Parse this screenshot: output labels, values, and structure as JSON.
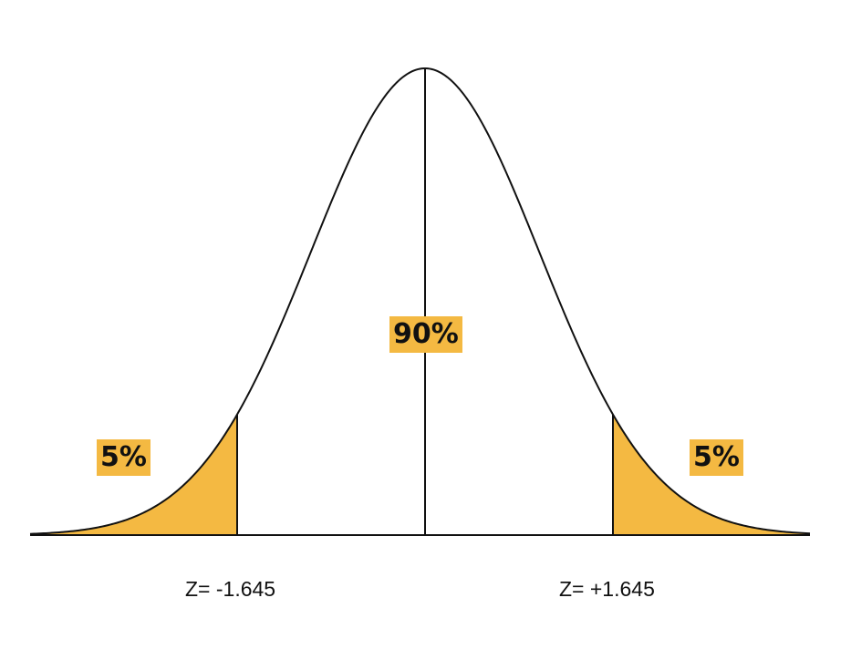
{
  "labels": {
    "left_tail": "5%",
    "center": "90%",
    "right_tail": "5%",
    "z_left": "Z= -1.645",
    "z_right": "Z= +1.645"
  },
  "colors": {
    "tail_fill": "#F4B942",
    "label_bg": "#F4B942",
    "curve": "#111111"
  },
  "distribution": {
    "type": "normal",
    "mean": 0,
    "sd": 1,
    "x_range": [
      -4.2,
      4.2
    ],
    "critical_z": 1.645,
    "tail_area": 0.05,
    "center_area": 0.9
  }
}
